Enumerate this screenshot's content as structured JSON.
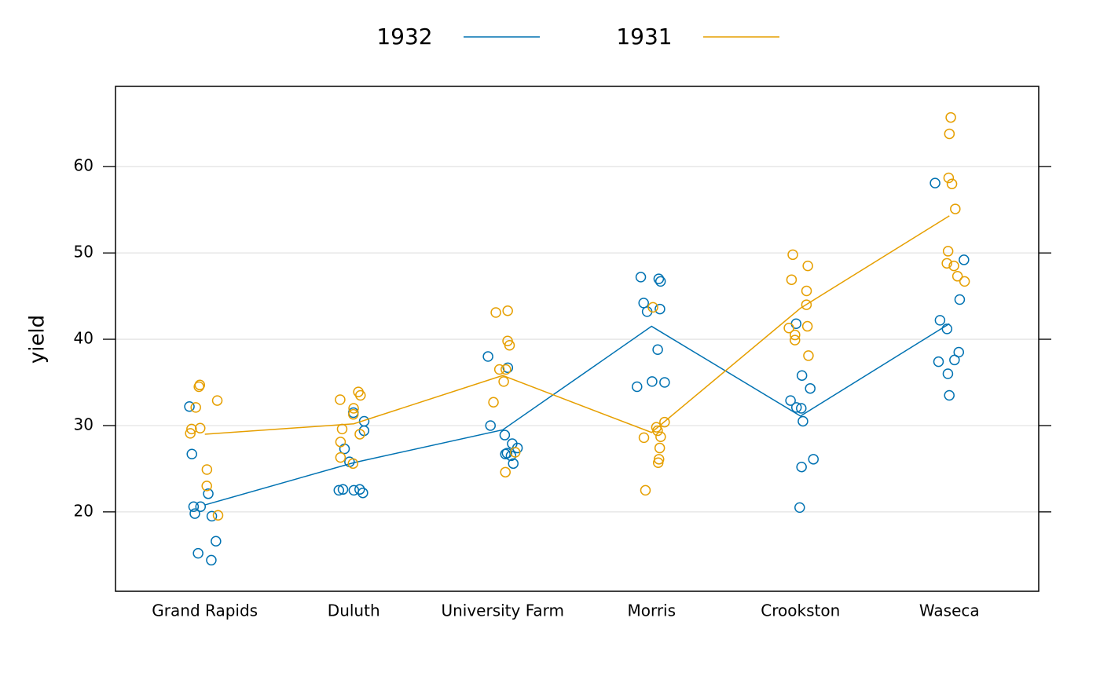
{
  "chart_data": {
    "type": "strip",
    "y_label": "yield",
    "categories": [
      "Grand Rapids",
      "Duluth",
      "University Farm",
      "Morris",
      "Crookston",
      "Waseca"
    ],
    "ylim": [
      10.8,
      69.3
    ],
    "yticks": [
      20,
      30,
      40,
      50,
      60
    ],
    "grid": true,
    "legend": "top",
    "series": [
      {
        "name": "1932",
        "color": "#0072b2",
        "values": [
          [
            32.2,
            26.7,
            22.1,
            20.6,
            20.6,
            19.8,
            19.5,
            16.6,
            15.2,
            14.4
          ],
          [
            30.5,
            29.4,
            31.5,
            27.3,
            25.8,
            22.6,
            22.5,
            22.5,
            22.2,
            22.6
          ],
          [
            30.0,
            28.9,
            27.9,
            27.4,
            26.8,
            26.5,
            26.7,
            25.6,
            38.0,
            36.7
          ],
          [
            47.2,
            46.7,
            47.0,
            44.2,
            43.5,
            43.2,
            38.8,
            35.0,
            34.5,
            35.1
          ],
          [
            41.8,
            35.8,
            34.3,
            32.9,
            32.1,
            32.0,
            30.5,
            26.1,
            25.2,
            20.5
          ],
          [
            58.1,
            49.2,
            44.6,
            42.2,
            41.2,
            38.5,
            37.6,
            37.4,
            36.0,
            33.5
          ]
        ],
        "means": [
          20.8,
          25.7,
          29.5,
          41.5,
          31.1,
          41.8
        ]
      },
      {
        "name": "1931",
        "color": "#e69f00",
        "values": [
          [
            34.5,
            34.7,
            32.9,
            32.1,
            29.6,
            29.7,
            29.1,
            24.9,
            23.0,
            19.6
          ],
          [
            33.9,
            33.5,
            33.0,
            32.0,
            31.3,
            29.6,
            29.0,
            28.1,
            26.3,
            25.6
          ],
          [
            43.3,
            43.1,
            39.8,
            39.3,
            36.5,
            36.5,
            35.1,
            32.7,
            26.9,
            24.6
          ],
          [
            43.7,
            29.8,
            30.4,
            29.4,
            28.7,
            28.6,
            27.4,
            26.1,
            25.7,
            22.5
          ],
          [
            49.8,
            48.5,
            46.9,
            45.6,
            44.0,
            41.5,
            41.3,
            40.5,
            39.9,
            38.1
          ],
          [
            65.7,
            63.8,
            58.7,
            58.0,
            55.1,
            50.2,
            48.8,
            48.5,
            47.3,
            46.7
          ]
        ],
        "means": [
          29.0,
          30.2,
          35.8,
          29.2,
          43.6,
          54.3
        ]
      }
    ]
  }
}
